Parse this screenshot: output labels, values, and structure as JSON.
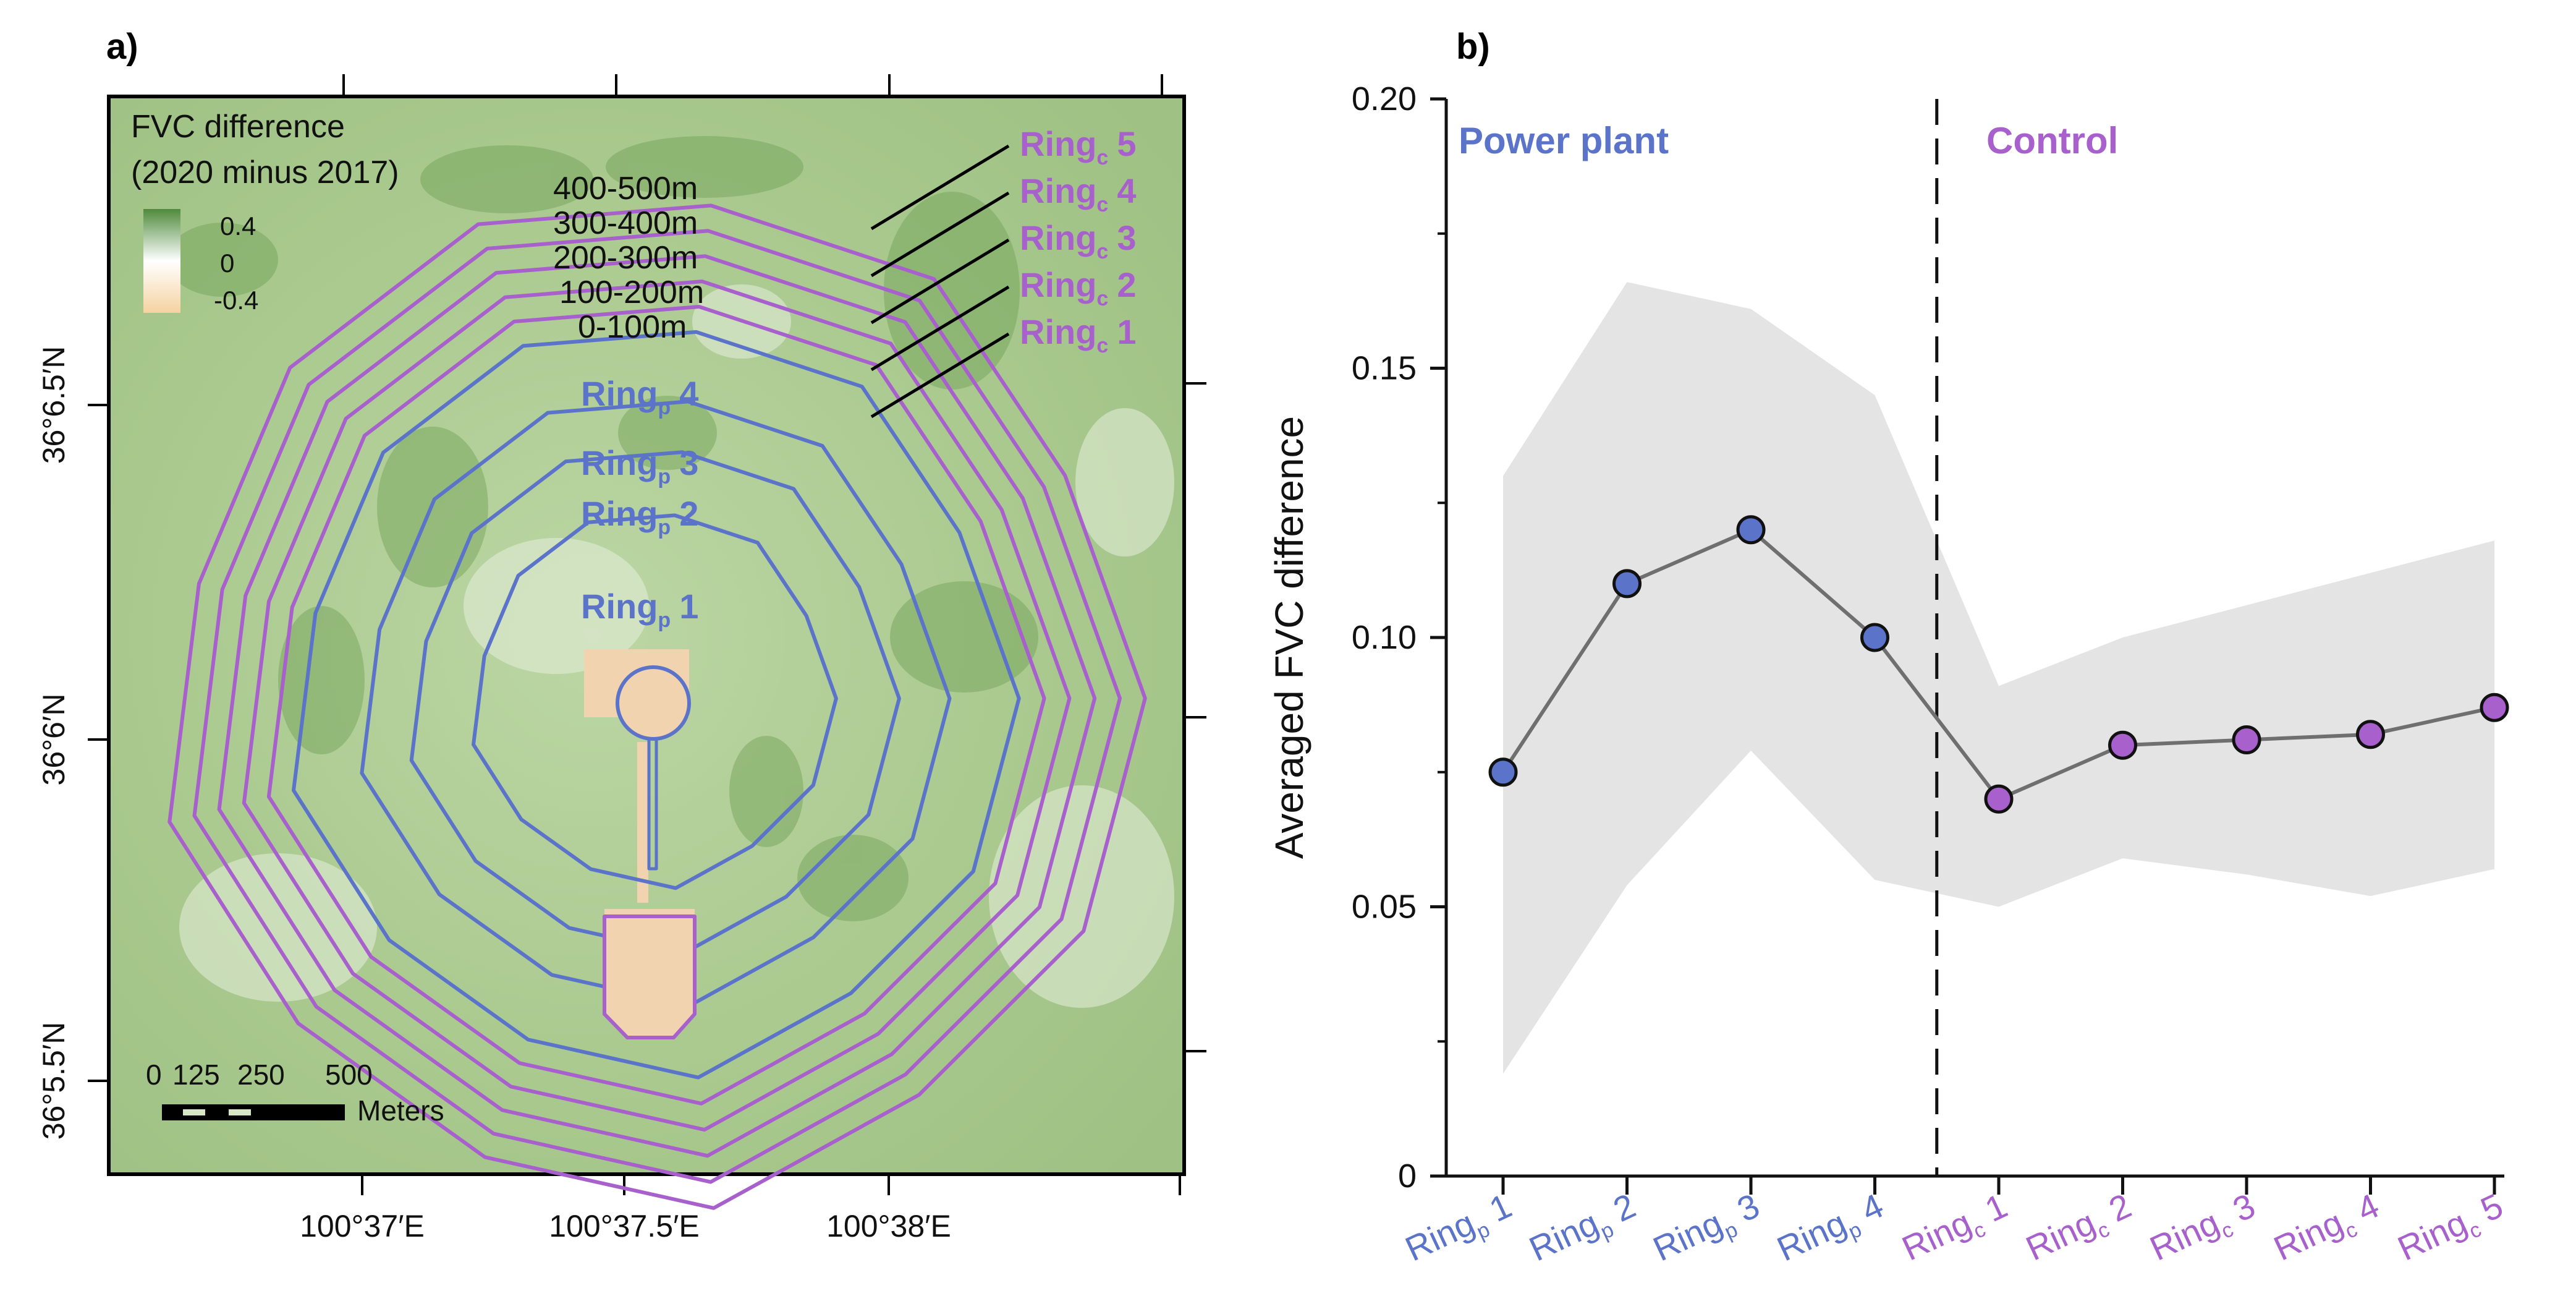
{
  "colors": {
    "power": "#5b74c9",
    "control": "#a860cc",
    "line": "#6f6f6f",
    "band": "#e4e4e4",
    "map_bg": "#a9c98e",
    "legend_pos": "#4f8a3c",
    "legend_neg": "#f5d3a1",
    "bare": "#f1d3b0",
    "black": "#000000"
  },
  "panel_a": {
    "label": "a)",
    "legend": {
      "title_line1": "FVC difference",
      "title_line2": "(2020 minus 2017)",
      "ticks": [
        "0.4",
        "0",
        "-0.4"
      ]
    },
    "distance_labels": [
      "400-500m",
      "300-400m",
      "200-300m",
      "100-200m",
      "0-100m"
    ],
    "control_ring_labels": [
      {
        "base": "Ring",
        "sub": "c",
        "num": "5"
      },
      {
        "base": "Ring",
        "sub": "c",
        "num": "4"
      },
      {
        "base": "Ring",
        "sub": "c",
        "num": "3"
      },
      {
        "base": "Ring",
        "sub": "c",
        "num": "2"
      },
      {
        "base": "Ring",
        "sub": "c",
        "num": "1"
      }
    ],
    "power_ring_labels": [
      {
        "base": "Ring",
        "sub": "p",
        "num": "4"
      },
      {
        "base": "Ring",
        "sub": "p",
        "num": "3"
      },
      {
        "base": "Ring",
        "sub": "p",
        "num": "2"
      },
      {
        "base": "Ring",
        "sub": "p",
        "num": "1"
      }
    ],
    "x_ticks": [
      "100°37′E",
      "100°37.5′E",
      "100°38′E"
    ],
    "y_ticks": [
      "36°6.5′N",
      "36°6′N",
      "36°5.5′N"
    ],
    "scale_bar": {
      "labels": [
        "0",
        "125",
        "250",
        "500"
      ],
      "unit": "Meters"
    }
  },
  "panel_b": {
    "label": "b)",
    "region_labels": {
      "power": "Power plant",
      "control": "Control"
    }
  },
  "chart_data": {
    "type": "line",
    "ylabel": "Averaged FVC difference",
    "xlabel": "",
    "ylim": [
      0,
      0.2
    ],
    "yticks": [
      "0",
      "0.05",
      "0.10",
      "0.15",
      "0.20"
    ],
    "categories": [
      {
        "base": "Ring",
        "sub": "p",
        "num": "1",
        "group": "power"
      },
      {
        "base": "Ring",
        "sub": "p",
        "num": "2",
        "group": "power"
      },
      {
        "base": "Ring",
        "sub": "p",
        "num": "3",
        "group": "power"
      },
      {
        "base": "Ring",
        "sub": "p",
        "num": "4",
        "group": "power"
      },
      {
        "base": "Ring",
        "sub": "c",
        "num": "1",
        "group": "control"
      },
      {
        "base": "Ring",
        "sub": "c",
        "num": "2",
        "group": "control"
      },
      {
        "base": "Ring",
        "sub": "c",
        "num": "3",
        "group": "control"
      },
      {
        "base": "Ring",
        "sub": "c",
        "num": "4",
        "group": "control"
      },
      {
        "base": "Ring",
        "sub": "c",
        "num": "5",
        "group": "control"
      }
    ],
    "series": [
      {
        "name": "mean",
        "values": [
          0.075,
          0.11,
          0.12,
          0.1,
          0.07,
          0.08,
          0.081,
          0.082,
          0.087
        ]
      }
    ],
    "band": {
      "upper": [
        0.13,
        0.166,
        0.161,
        0.145,
        0.091,
        0.1,
        0.106,
        0.112,
        0.118
      ],
      "lower": [
        0.019,
        0.054,
        0.079,
        0.055,
        0.05,
        0.059,
        0.056,
        0.052,
        0.057
      ]
    },
    "divider_after_index": 3
  }
}
